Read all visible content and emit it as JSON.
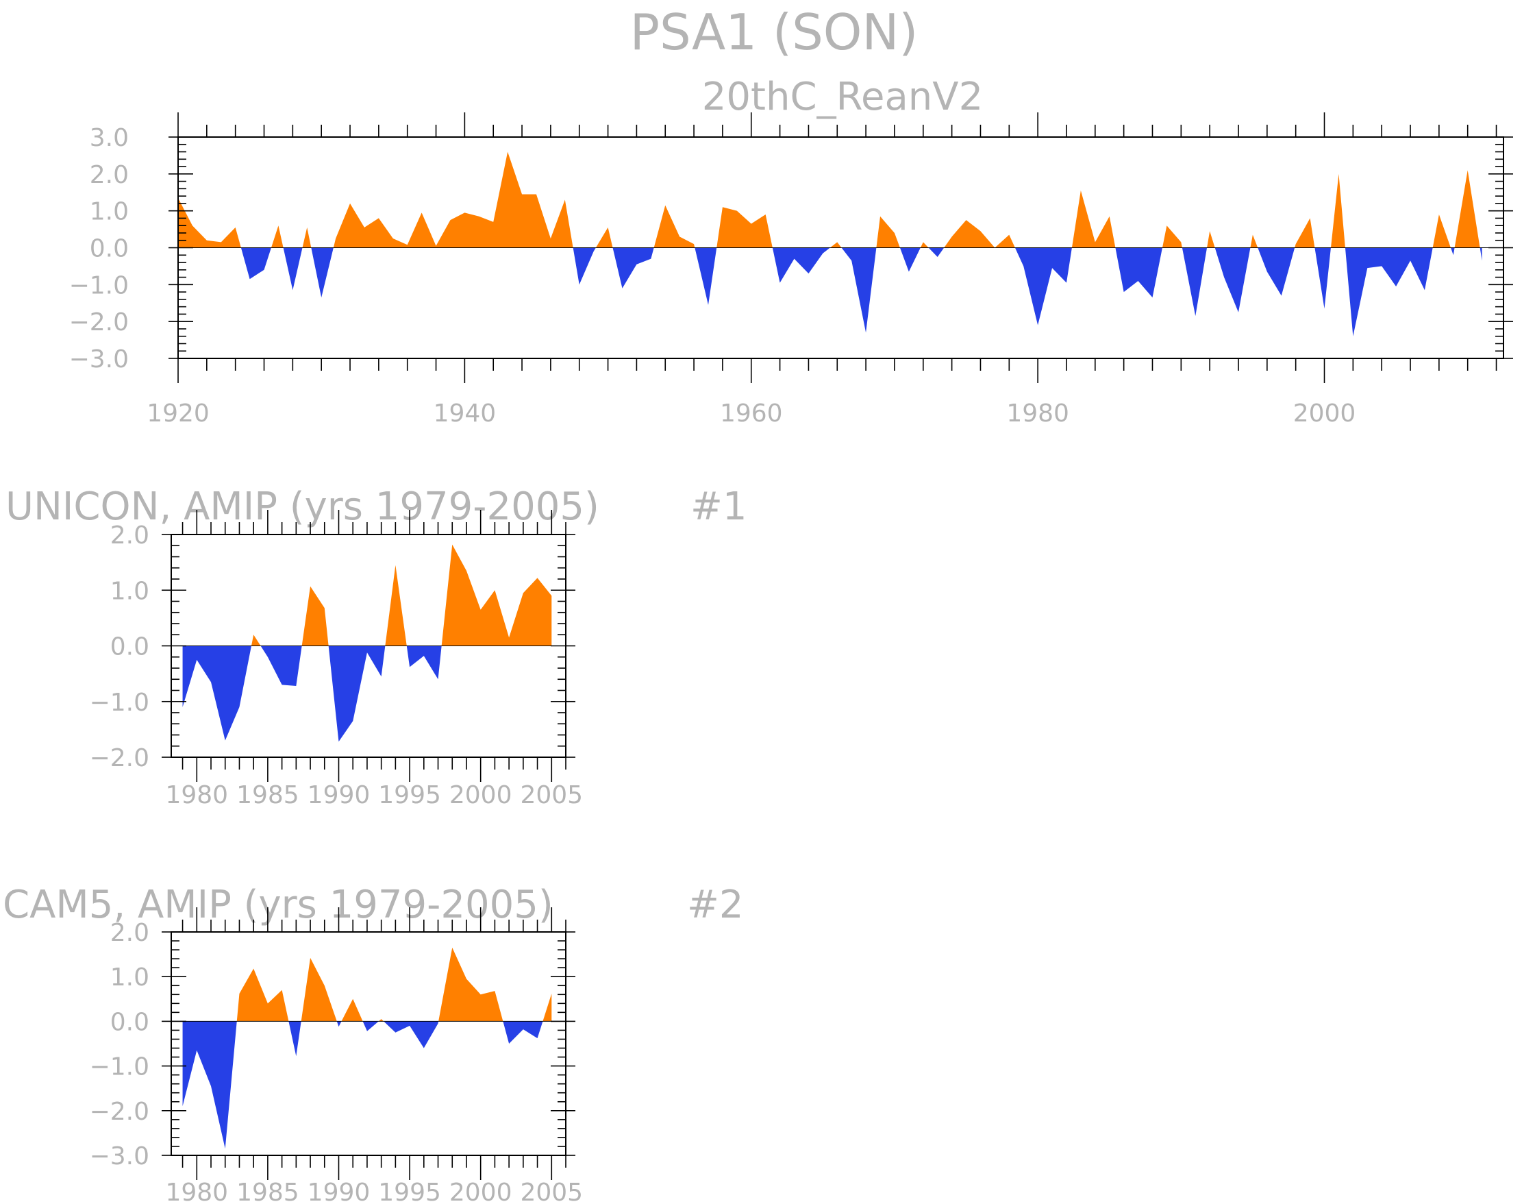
{
  "colors": {
    "positive": "#ff8000",
    "negative": "#2640e6",
    "text": "#b4b4b4",
    "axis": "#000000"
  },
  "figure": {
    "title": "PSA1 (SON)"
  },
  "chart_data": [
    {
      "type": "area",
      "title": "20thC_ReanV2",
      "label_right": "",
      "xlabel": "",
      "ylabel": "",
      "x_start": 1920,
      "xlim": [
        1920,
        2012.5
      ],
      "ylim": [
        -3,
        3
      ],
      "x_ticks": [
        1920,
        1940,
        1960,
        1980,
        2000
      ],
      "x_tick_labels": [
        "1920",
        "1940",
        "1960",
        "1980",
        "2000"
      ],
      "y_ticks": [
        -3,
        -2,
        -1,
        0,
        1,
        2,
        3
      ],
      "y_tick_labels": [
        "−3.0",
        "−2.0",
        "−1.0",
        "0.0",
        "1.0",
        "2.0",
        "3.0"
      ],
      "fill": "above orange / below blue",
      "values": [
        1.35,
        0.6,
        0.2,
        0.15,
        0.55,
        -0.85,
        -0.6,
        0.6,
        -1.15,
        0.55,
        -1.35,
        0.25,
        1.2,
        0.55,
        0.8,
        0.25,
        0.08,
        0.95,
        0.05,
        0.75,
        0.95,
        0.85,
        0.7,
        2.6,
        1.45,
        1.45,
        0.25,
        1.3,
        -1.0,
        -0.1,
        0.55,
        -1.1,
        -0.45,
        -0.3,
        1.15,
        0.3,
        0.1,
        -1.55,
        1.1,
        1.0,
        0.65,
        0.9,
        -0.95,
        -0.3,
        -0.7,
        -0.15,
        0.15,
        -0.35,
        -2.3,
        0.85,
        0.4,
        -0.65,
        0.15,
        -0.25,
        0.3,
        0.75,
        0.45,
        0.0,
        0.35,
        -0.5,
        -2.1,
        -0.55,
        -0.95,
        1.55,
        0.15,
        0.85,
        -1.2,
        -0.9,
        -1.35,
        0.6,
        0.15,
        -1.85,
        0.45,
        -0.8,
        -1.75,
        0.35,
        -0.65,
        -1.3,
        0.1,
        0.8,
        -1.65,
        2.0,
        -2.4,
        -0.55,
        -0.5,
        -1.05,
        -0.35,
        -1.15,
        0.9,
        -0.2,
        2.1,
        -0.35
      ]
    },
    {
      "type": "area",
      "title": "UNICON, AMIP (yrs 1979-2005)",
      "label_right": "#1",
      "xlabel": "",
      "ylabel": "",
      "x_start": 1979,
      "xlim": [
        1978.2,
        2006
      ],
      "ylim": [
        -2,
        2
      ],
      "x_ticks": [
        1980,
        1985,
        1990,
        1995,
        2000,
        2005
      ],
      "x_tick_labels": [
        "1980",
        "1985",
        "1990",
        "1995",
        "2000",
        "2005"
      ],
      "y_ticks": [
        -2,
        -1,
        0,
        1,
        2
      ],
      "y_tick_labels": [
        "−2.0",
        "−1.0",
        "0.0",
        "1.0",
        "2.0"
      ],
      "fill": "above orange / below blue",
      "values": [
        -1.1,
        -0.25,
        -0.65,
        -1.7,
        -1.1,
        0.2,
        -0.2,
        -0.7,
        -0.72,
        1.07,
        0.68,
        -1.72,
        -1.35,
        -0.12,
        -0.55,
        1.45,
        -0.38,
        -0.18,
        -0.6,
        1.82,
        1.35,
        0.65,
        1.0,
        0.15,
        0.95,
        1.22,
        0.9
      ]
    },
    {
      "type": "area",
      "title": "CAM5, AMIP (yrs 1979-2005)",
      "label_right": "#2",
      "xlabel": "",
      "ylabel": "",
      "x_start": 1979,
      "xlim": [
        1978.2,
        2006
      ],
      "ylim": [
        -3,
        2
      ],
      "x_ticks": [
        1980,
        1985,
        1990,
        1995,
        2000,
        2005
      ],
      "x_tick_labels": [
        "1980",
        "1985",
        "1990",
        "1995",
        "2000",
        "2005"
      ],
      "y_ticks": [
        -3,
        -2,
        -1,
        0,
        1,
        2
      ],
      "y_tick_labels": [
        "−3.0",
        "−2.0",
        "−1.0",
        "0.0",
        "1.0",
        "2.0"
      ],
      "fill": "above orange / below blue",
      "values": [
        -1.9,
        -0.65,
        -1.45,
        -2.85,
        0.62,
        1.18,
        0.4,
        0.7,
        -0.78,
        1.42,
        0.8,
        -0.12,
        0.5,
        -0.22,
        0.05,
        -0.25,
        -0.1,
        -0.6,
        -0.05,
        1.65,
        0.95,
        0.6,
        0.68,
        -0.5,
        -0.18,
        -0.38,
        0.62
      ]
    }
  ]
}
